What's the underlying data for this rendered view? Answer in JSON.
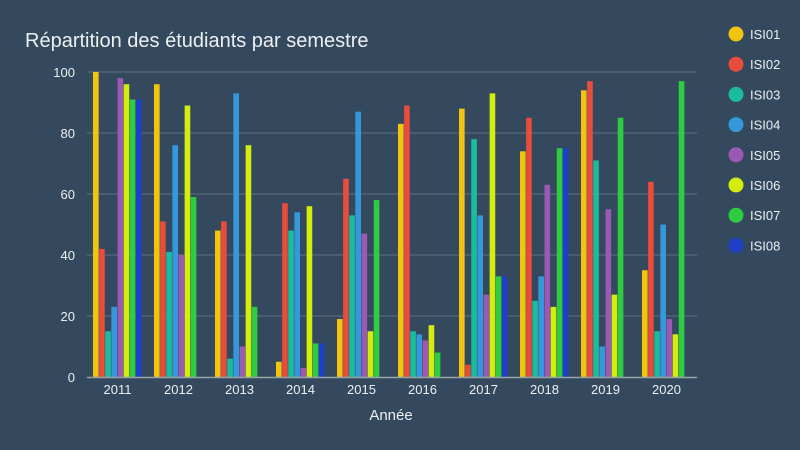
{
  "chart_data": {
    "type": "bar",
    "title": "Répartition des étudiants par semestre",
    "xlabel": "Année",
    "ylabel": "",
    "ylim": [
      0,
      100
    ],
    "yticks": [
      0,
      20,
      40,
      60,
      80,
      100
    ],
    "grid": true,
    "legend_position": "right",
    "categories": [
      "2011",
      "2012",
      "2013",
      "2014",
      "2015",
      "2016",
      "2017",
      "2018",
      "2019",
      "2020"
    ],
    "series": [
      {
        "name": "ISI01",
        "color": "#f1c40f",
        "values": [
          100,
          96,
          48,
          5,
          19,
          83,
          88,
          74,
          94,
          35
        ]
      },
      {
        "name": "ISI02",
        "color": "#e74c3c",
        "values": [
          42,
          51,
          51,
          57,
          65,
          89,
          4,
          85,
          97,
          64
        ]
      },
      {
        "name": "ISI03",
        "color": "#1abc9c",
        "values": [
          15,
          41,
          6,
          48,
          53,
          15,
          78,
          25,
          71,
          15
        ]
      },
      {
        "name": "ISI04",
        "color": "#3498db",
        "values": [
          23,
          76,
          93,
          54,
          87,
          14,
          53,
          33,
          10,
          50
        ]
      },
      {
        "name": "ISI05",
        "color": "#9b59b6",
        "values": [
          98,
          40,
          10,
          3,
          47,
          12,
          27,
          63,
          55,
          19
        ]
      },
      {
        "name": "ISI06",
        "color": "#d4ed0c",
        "values": [
          96,
          89,
          76,
          56,
          15,
          17,
          93,
          23,
          27,
          14
        ]
      },
      {
        "name": "ISI07",
        "color": "#2ecc40",
        "values": [
          91,
          59,
          23,
          11,
          58,
          8,
          33,
          75,
          85,
          97
        ]
      },
      {
        "name": "ISI08",
        "color": "#1f3fc9",
        "values": [
          91,
          0,
          0,
          11,
          0,
          0,
          33,
          75,
          0,
          0
        ]
      }
    ]
  }
}
